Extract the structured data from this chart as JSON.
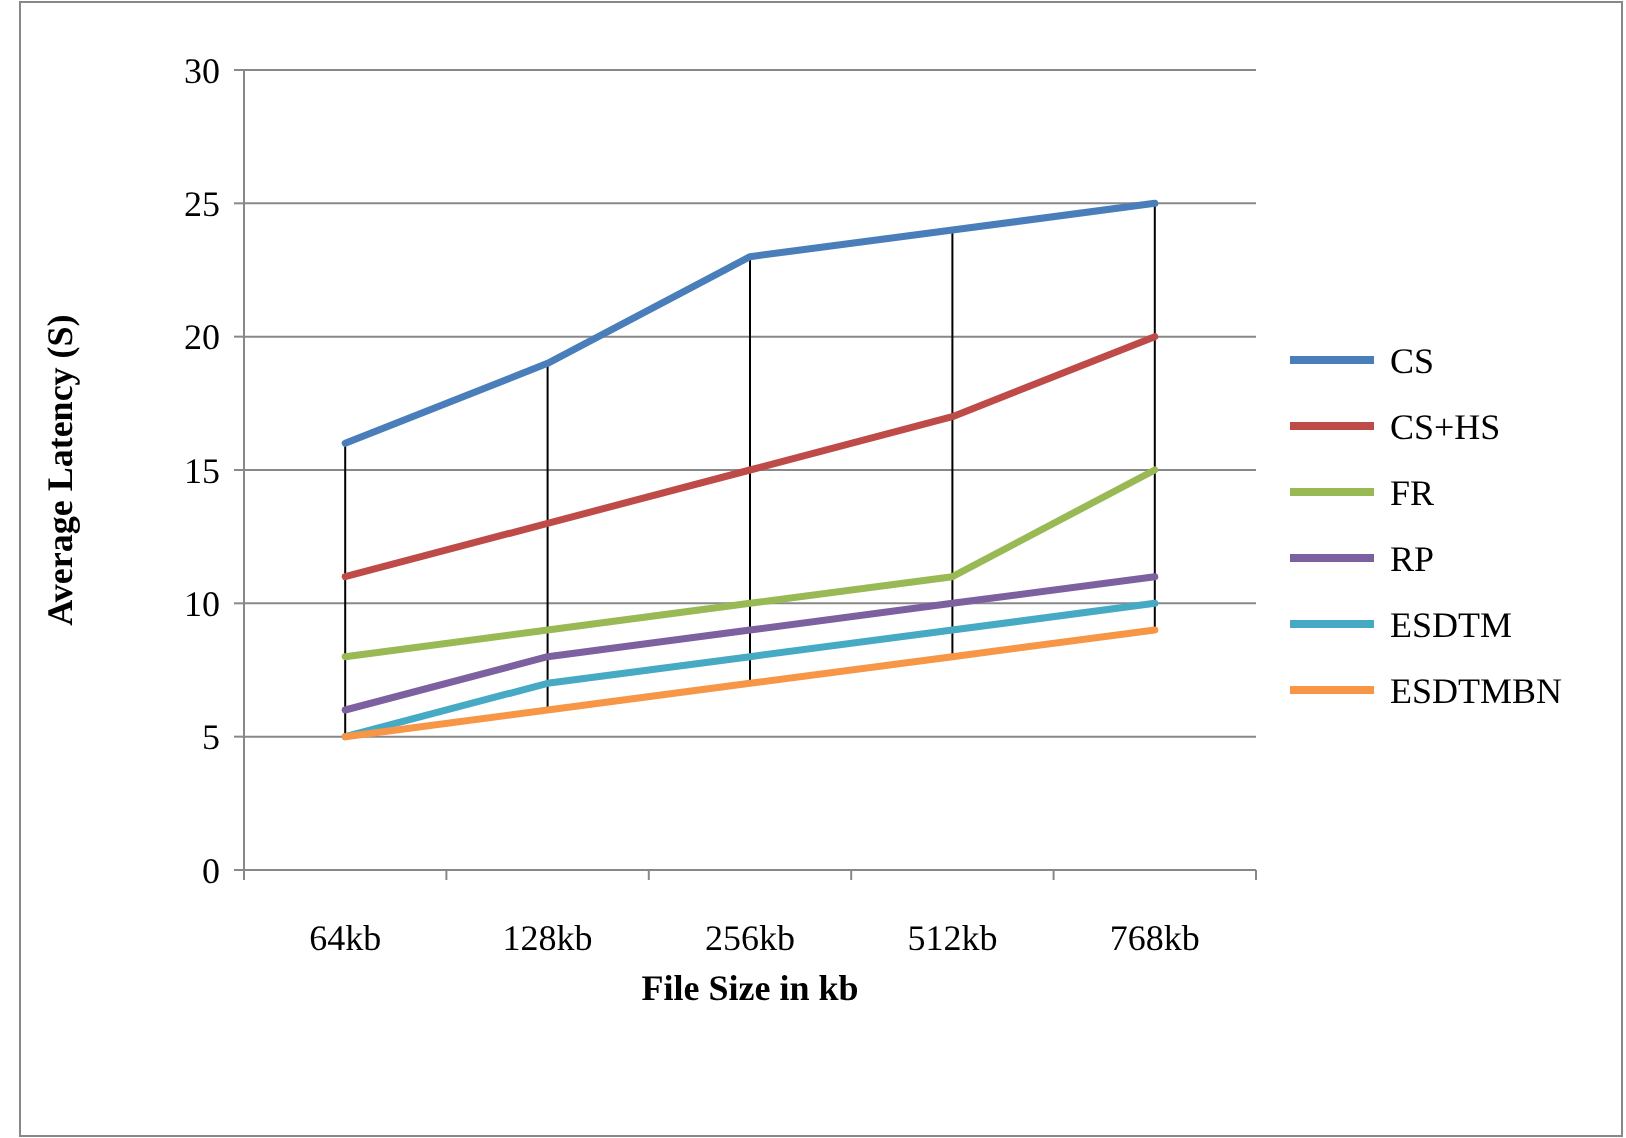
{
  "chart_data": {
    "type": "line",
    "xlabel": "File Size in kb",
    "ylabel": "Average Latency (S)",
    "categories": [
      "64kb",
      "128kb",
      "256kb",
      "512kb",
      "768kb"
    ],
    "series": [
      {
        "name": "CS",
        "color": "#4a7ebb",
        "values": [
          16,
          19,
          23,
          24,
          25
        ]
      },
      {
        "name": "CS+HS",
        "color": "#be4b48",
        "values": [
          11,
          13,
          15,
          17,
          20
        ]
      },
      {
        "name": "FR",
        "color": "#98b954",
        "values": [
          8,
          9,
          10,
          11,
          15
        ]
      },
      {
        "name": "RP",
        "color": "#7d60a0",
        "values": [
          6,
          8,
          9,
          10,
          11
        ]
      },
      {
        "name": "ESDTM",
        "color": "#46aac5",
        "values": [
          5,
          7,
          8,
          9,
          10
        ]
      },
      {
        "name": "ESDTMBN",
        "color": "#f79646",
        "values": [
          5,
          6,
          7,
          8,
          9
        ]
      }
    ],
    "ylim": [
      0,
      30
    ],
    "yticks": [
      0,
      5,
      10,
      15,
      20,
      25,
      30
    ],
    "grid": "y",
    "legend": "right",
    "marker": "none",
    "line_style": "solid"
  }
}
